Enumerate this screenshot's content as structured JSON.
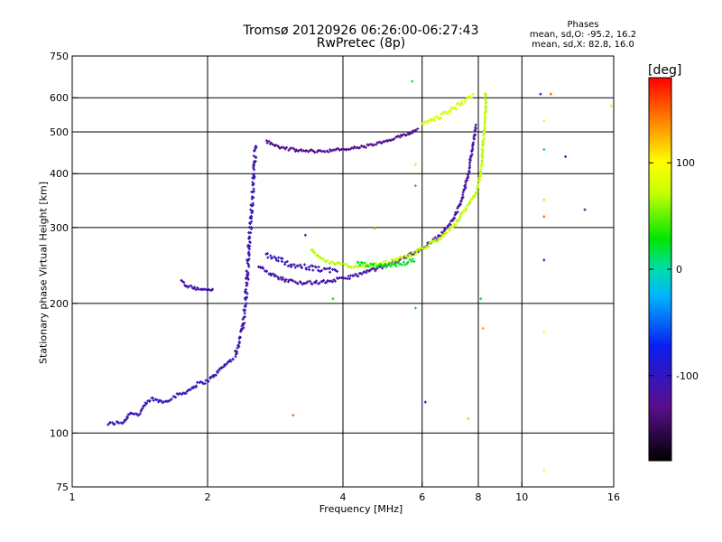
{
  "chart_data": {
    "type": "scatter",
    "title": "Tromsø 20120926 06:26:00-06:27:43",
    "subtitle": "RwPretec (8p)",
    "xlabel": "Frequency [MHz]",
    "ylabel": "Stationary phase Virtual Height [km]",
    "x_scale": "log",
    "y_scale": "log",
    "xlim": [
      1,
      16
    ],
    "ylim": [
      75,
      750
    ],
    "x_ticks": [
      1,
      2,
      4,
      6,
      8,
      10,
      16
    ],
    "x_tick_labels": [
      "1",
      "2",
      "4",
      "6",
      "8",
      "10",
      "16"
    ],
    "x_grid": [
      2,
      4,
      6,
      8,
      10
    ],
    "y_ticks": [
      75,
      100,
      200,
      300,
      400,
      500,
      600,
      750
    ],
    "y_tick_labels": [
      "75",
      "100",
      "200",
      "300",
      "400",
      "500",
      "600",
      "750"
    ],
    "y_grid": [
      100,
      200,
      300,
      400,
      500,
      600
    ],
    "grid": true,
    "colorbar": {
      "label": "[deg]",
      "range": [
        -180,
        180
      ],
      "ticks": [
        100,
        0,
        -100
      ],
      "tick_labels": [
        "100",
        "0",
        "-100"
      ]
    },
    "phase_summary": {
      "title": "Phases",
      "line_o": "mean, sd,O: -95.2, 16.2",
      "line_x": "mean, sd,X: 82.8, 16.0"
    },
    "traces": [
      {
        "mode": "O",
        "phase": -105,
        "spread": 0.006,
        "points": [
          [
            1.2,
            105
          ],
          [
            1.3,
            106
          ],
          [
            1.35,
            112
          ],
          [
            1.4,
            110
          ],
          [
            1.45,
            116
          ],
          [
            1.5,
            120
          ],
          [
            1.6,
            118
          ],
          [
            1.7,
            122
          ],
          [
            1.8,
            125
          ],
          [
            1.9,
            130
          ],
          [
            2.0,
            132
          ],
          [
            2.1,
            138
          ],
          [
            2.2,
            145
          ],
          [
            2.3,
            150
          ]
        ]
      },
      {
        "mode": "O",
        "phase": -108,
        "spread": 0.012,
        "points": [
          [
            2.3,
            150
          ],
          [
            2.36,
            165
          ],
          [
            2.4,
            180
          ],
          [
            2.43,
            200
          ],
          [
            2.45,
            230
          ],
          [
            2.47,
            270
          ],
          [
            2.5,
            320
          ],
          [
            2.52,
            360
          ],
          [
            2.54,
            420
          ],
          [
            2.56,
            470
          ]
        ]
      },
      {
        "mode": "O",
        "phase": -112,
        "spread": 0.005,
        "points": [
          [
            1.75,
            225
          ],
          [
            1.8,
            220
          ],
          [
            1.9,
            216
          ],
          [
            2.0,
            215
          ],
          [
            2.07,
            216
          ]
        ]
      },
      {
        "mode": "O",
        "phase": -125,
        "spread": 0.005,
        "points": [
          [
            2.7,
            475
          ],
          [
            2.9,
            460
          ],
          [
            3.2,
            452
          ],
          [
            3.6,
            451
          ],
          [
            4.0,
            455
          ],
          [
            4.5,
            463
          ],
          [
            5.0,
            475
          ],
          [
            5.5,
            492
          ],
          [
            5.9,
            508
          ]
        ]
      },
      {
        "mode": "O",
        "phase": -115,
        "spread": 0.006,
        "points": [
          [
            2.6,
            245
          ],
          [
            2.8,
            232
          ],
          [
            3.0,
            226
          ],
          [
            3.3,
            223
          ],
          [
            3.6,
            224
          ],
          [
            4.0,
            228
          ],
          [
            4.5,
            236
          ],
          [
            5.0,
            245
          ],
          [
            5.5,
            256
          ],
          [
            6.0,
            268
          ],
          [
            6.5,
            285
          ],
          [
            7.0,
            310
          ],
          [
            7.3,
            340
          ],
          [
            7.6,
            400
          ],
          [
            7.8,
            470
          ],
          [
            7.9,
            520
          ]
        ]
      },
      {
        "mode": "O",
        "phase": -105,
        "spread": 0.01,
        "points": [
          [
            2.7,
            260
          ],
          [
            3.0,
            248
          ],
          [
            3.3,
            242
          ],
          [
            3.6,
            240
          ],
          [
            3.9,
            238
          ]
        ]
      },
      {
        "mode": "X",
        "phase": 72,
        "spread": 0.006,
        "points": [
          [
            3.4,
            265
          ],
          [
            3.7,
            250
          ],
          [
            4.1,
            244
          ],
          [
            4.6,
            244
          ],
          [
            5.1,
            250
          ],
          [
            5.6,
            258
          ],
          [
            6.1,
            270
          ],
          [
            6.6,
            285
          ],
          [
            7.1,
            305
          ],
          [
            7.5,
            330
          ],
          [
            7.9,
            360
          ],
          [
            8.1,
            400
          ],
          [
            8.2,
            470
          ],
          [
            8.3,
            550
          ],
          [
            8.3,
            620
          ]
        ]
      },
      {
        "mode": "X",
        "phase": 80,
        "spread": 0.008,
        "points": [
          [
            6.0,
            520
          ],
          [
            6.5,
            540
          ],
          [
            7.0,
            565
          ],
          [
            7.5,
            590
          ],
          [
            7.8,
            610
          ]
        ]
      },
      {
        "mode": "X",
        "phase": 25,
        "spread": 0.007,
        "points": [
          [
            4.3,
            247
          ],
          [
            4.8,
            244
          ],
          [
            5.3,
            246
          ],
          [
            5.8,
            252
          ]
        ]
      }
    ],
    "scattered_points": [
      {
        "x": 3.1,
        "y": 110,
        "phase": 150
      },
      {
        "x": 5.8,
        "y": 195,
        "phase": 10
      },
      {
        "x": 6.1,
        "y": 118,
        "phase": -90
      },
      {
        "x": 7.6,
        "y": 108,
        "phase": 60
      },
      {
        "x": 8.1,
        "y": 205,
        "phase": 20
      },
      {
        "x": 8.2,
        "y": 175,
        "phase": 130
      },
      {
        "x": 11.2,
        "y": 172,
        "phase": 100
      },
      {
        "x": 11.2,
        "y": 252,
        "phase": -95
      },
      {
        "x": 11.2,
        "y": 318,
        "phase": 150
      },
      {
        "x": 11.2,
        "y": 348,
        "phase": 115
      },
      {
        "x": 11.2,
        "y": 82,
        "phase": 100
      },
      {
        "x": 11.0,
        "y": 612,
        "phase": -95
      },
      {
        "x": 11.6,
        "y": 612,
        "phase": 150
      },
      {
        "x": 11.2,
        "y": 455,
        "phase": 20
      },
      {
        "x": 11.2,
        "y": 530,
        "phase": 105
      },
      {
        "x": 12.5,
        "y": 438,
        "phase": -110
      },
      {
        "x": 13.8,
        "y": 330,
        "phase": -130
      },
      {
        "x": 15.8,
        "y": 575,
        "phase": 110
      },
      {
        "x": 5.7,
        "y": 655,
        "phase": 20
      },
      {
        "x": 5.8,
        "y": 420,
        "phase": 110
      },
      {
        "x": 5.8,
        "y": 375,
        "phase": 30
      },
      {
        "x": 3.8,
        "y": 205,
        "phase": 30
      },
      {
        "x": 3.3,
        "y": 288,
        "phase": -120
      },
      {
        "x": 4.7,
        "y": 298,
        "phase": 120
      }
    ]
  }
}
